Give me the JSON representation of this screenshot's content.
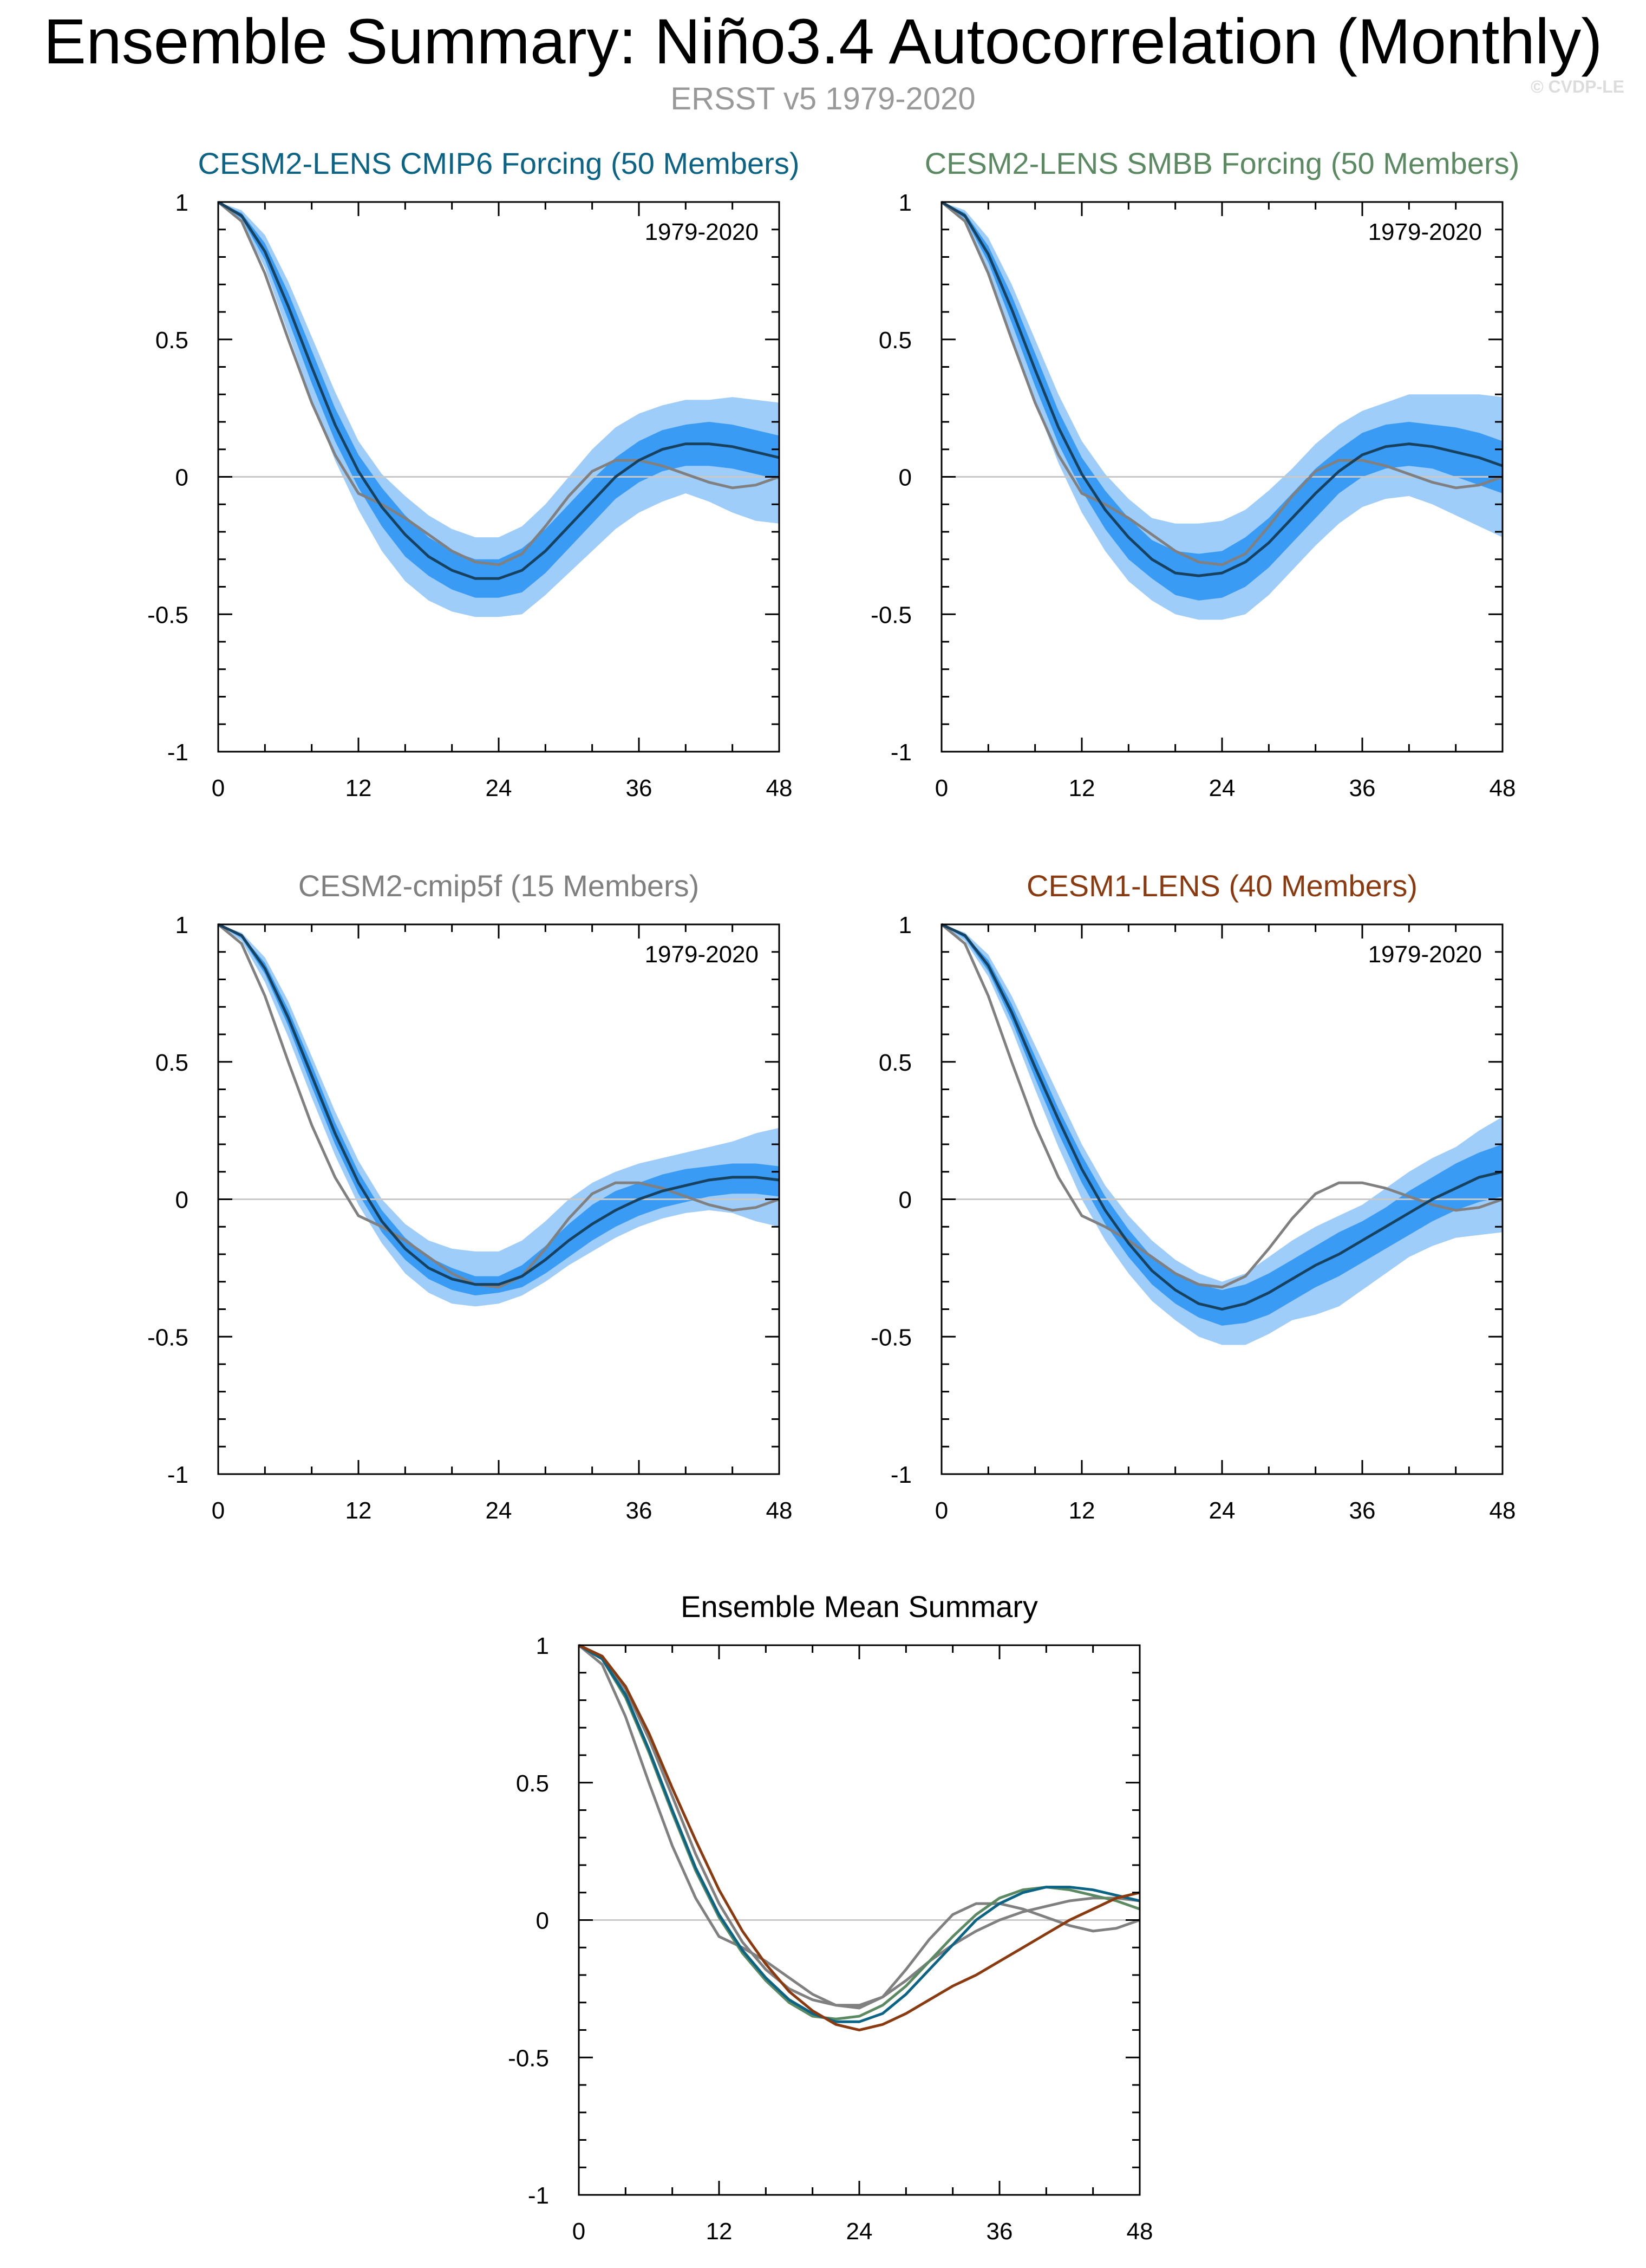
{
  "title": "Ensemble Summary: Niño3.4 Autocorrelation (Monthly)",
  "subtitle": "ERSST v5 1979-2020",
  "copyright": "© CVDP-LE",
  "colors": {
    "band_outer": "#9fcdf9",
    "band_inner": "#3a9bf5",
    "ensemble_mean": "#16415f",
    "observations": "#808080",
    "zero_line": "#c8c8c8"
  },
  "chart_data": [
    {
      "type": "line",
      "title": "CESM2-LENS CMIP6 Forcing (50 Members)",
      "title_color": "#0b6385",
      "period": "1979-2020",
      "x_ticks": [
        "0",
        "12",
        "24",
        "36",
        "48"
      ],
      "y_ticks": [
        "1",
        "0.5",
        "0",
        "-0.5",
        "-1"
      ],
      "xlim": [
        0,
        48
      ],
      "ylim": [
        -1,
        1
      ],
      "x": [
        0,
        2,
        4,
        6,
        8,
        10,
        12,
        14,
        16,
        18,
        20,
        22,
        24,
        26,
        28,
        30,
        32,
        34,
        36,
        38,
        40,
        42,
        44,
        46,
        48
      ],
      "ensemble_mean": [
        1.0,
        0.95,
        0.82,
        0.62,
        0.4,
        0.19,
        0.02,
        -0.11,
        -0.21,
        -0.29,
        -0.34,
        -0.37,
        -0.37,
        -0.34,
        -0.27,
        -0.18,
        -0.09,
        0.0,
        0.06,
        0.1,
        0.12,
        0.12,
        0.11,
        0.09,
        0.07
      ],
      "band_inner_upper": [
        1.0,
        0.96,
        0.85,
        0.67,
        0.46,
        0.25,
        0.08,
        -0.04,
        -0.14,
        -0.22,
        -0.27,
        -0.3,
        -0.3,
        -0.26,
        -0.19,
        -0.1,
        -0.01,
        0.07,
        0.13,
        0.17,
        0.19,
        0.2,
        0.19,
        0.17,
        0.15
      ],
      "band_inner_lower": [
        1.0,
        0.94,
        0.79,
        0.57,
        0.34,
        0.13,
        -0.04,
        -0.18,
        -0.29,
        -0.36,
        -0.41,
        -0.44,
        -0.44,
        -0.42,
        -0.35,
        -0.26,
        -0.17,
        -0.08,
        -0.02,
        0.02,
        0.04,
        0.04,
        0.03,
        0.01,
        -0.01
      ],
      "band_outer_upper": [
        1.0,
        0.97,
        0.88,
        0.71,
        0.51,
        0.31,
        0.13,
        0.01,
        -0.07,
        -0.14,
        -0.19,
        -0.22,
        -0.22,
        -0.18,
        -0.1,
        0.0,
        0.1,
        0.18,
        0.23,
        0.26,
        0.28,
        0.28,
        0.29,
        0.28,
        0.27
      ],
      "band_outer_lower": [
        1.0,
        0.93,
        0.76,
        0.52,
        0.28,
        0.06,
        -0.12,
        -0.27,
        -0.38,
        -0.45,
        -0.49,
        -0.51,
        -0.51,
        -0.5,
        -0.43,
        -0.35,
        -0.27,
        -0.19,
        -0.13,
        -0.09,
        -0.06,
        -0.09,
        -0.13,
        -0.16,
        -0.17
      ],
      "observed": [
        1.0,
        0.93,
        0.74,
        0.5,
        0.27,
        0.08,
        -0.06,
        -0.1,
        -0.15,
        -0.21,
        -0.27,
        -0.31,
        -0.32,
        -0.28,
        -0.18,
        -0.07,
        0.02,
        0.06,
        0.06,
        0.04,
        0.01,
        -0.02,
        -0.04,
        -0.03,
        0.0
      ]
    },
    {
      "type": "line",
      "title": "CESM2-LENS SMBB Forcing (50 Members)",
      "title_color": "#5b8a62",
      "period": "1979-2020",
      "x_ticks": [
        "0",
        "12",
        "24",
        "36",
        "48"
      ],
      "y_ticks": [
        "1",
        "0.5",
        "0",
        "-0.5",
        "-1"
      ],
      "xlim": [
        0,
        48
      ],
      "ylim": [
        -1,
        1
      ],
      "x": [
        0,
        2,
        4,
        6,
        8,
        10,
        12,
        14,
        16,
        18,
        20,
        22,
        24,
        26,
        28,
        30,
        32,
        34,
        36,
        38,
        40,
        42,
        44,
        46,
        48
      ],
      "ensemble_mean": [
        1.0,
        0.95,
        0.81,
        0.61,
        0.39,
        0.18,
        0.01,
        -0.12,
        -0.22,
        -0.3,
        -0.35,
        -0.36,
        -0.35,
        -0.31,
        -0.24,
        -0.15,
        -0.06,
        0.02,
        0.08,
        0.11,
        0.12,
        0.11,
        0.09,
        0.07,
        0.04
      ],
      "band_inner_upper": [
        1.0,
        0.96,
        0.84,
        0.66,
        0.45,
        0.24,
        0.07,
        -0.05,
        -0.15,
        -0.23,
        -0.27,
        -0.28,
        -0.27,
        -0.22,
        -0.15,
        -0.06,
        0.03,
        0.1,
        0.16,
        0.19,
        0.2,
        0.19,
        0.18,
        0.16,
        0.13
      ],
      "band_inner_lower": [
        1.0,
        0.94,
        0.78,
        0.56,
        0.33,
        0.12,
        -0.05,
        -0.19,
        -0.3,
        -0.37,
        -0.43,
        -0.45,
        -0.44,
        -0.4,
        -0.33,
        -0.24,
        -0.15,
        -0.06,
        0.0,
        0.03,
        0.04,
        0.03,
        0.0,
        -0.03,
        -0.06
      ],
      "band_outer_upper": [
        1.0,
        0.97,
        0.87,
        0.7,
        0.5,
        0.3,
        0.13,
        0.01,
        -0.08,
        -0.15,
        -0.17,
        -0.17,
        -0.16,
        -0.12,
        -0.05,
        0.03,
        0.12,
        0.19,
        0.24,
        0.27,
        0.3,
        0.3,
        0.3,
        0.3,
        0.29
      ],
      "band_outer_lower": [
        1.0,
        0.93,
        0.75,
        0.51,
        0.27,
        0.05,
        -0.13,
        -0.27,
        -0.38,
        -0.45,
        -0.5,
        -0.52,
        -0.52,
        -0.5,
        -0.43,
        -0.34,
        -0.25,
        -0.17,
        -0.11,
        -0.08,
        -0.07,
        -0.1,
        -0.14,
        -0.18,
        -0.22
      ],
      "observed": [
        1.0,
        0.93,
        0.74,
        0.5,
        0.27,
        0.08,
        -0.06,
        -0.1,
        -0.15,
        -0.21,
        -0.27,
        -0.31,
        -0.32,
        -0.28,
        -0.18,
        -0.07,
        0.02,
        0.06,
        0.06,
        0.04,
        0.01,
        -0.02,
        -0.04,
        -0.03,
        0.0
      ]
    },
    {
      "type": "line",
      "title": "CESM2-cmip5f (15 Members)",
      "title_color": "#808080",
      "period": "1979-2020",
      "x_ticks": [
        "0",
        "12",
        "24",
        "36",
        "48"
      ],
      "y_ticks": [
        "1",
        "0.5",
        "0",
        "-0.5",
        "-1"
      ],
      "xlim": [
        0,
        48
      ],
      "ylim": [
        -1,
        1
      ],
      "x": [
        0,
        2,
        4,
        6,
        8,
        10,
        12,
        14,
        16,
        18,
        20,
        22,
        24,
        26,
        28,
        30,
        32,
        34,
        36,
        38,
        40,
        42,
        44,
        46,
        48
      ],
      "ensemble_mean": [
        1.0,
        0.96,
        0.84,
        0.66,
        0.45,
        0.24,
        0.06,
        -0.08,
        -0.18,
        -0.25,
        -0.29,
        -0.31,
        -0.31,
        -0.28,
        -0.22,
        -0.15,
        -0.09,
        -0.04,
        0.0,
        0.03,
        0.05,
        0.07,
        0.08,
        0.08,
        0.07
      ],
      "band_inner_upper": [
        1.0,
        0.96,
        0.86,
        0.69,
        0.49,
        0.28,
        0.1,
        -0.04,
        -0.14,
        -0.21,
        -0.25,
        -0.28,
        -0.28,
        -0.24,
        -0.17,
        -0.09,
        -0.02,
        0.03,
        0.06,
        0.09,
        0.11,
        0.12,
        0.13,
        0.13,
        0.12
      ],
      "band_inner_lower": [
        1.0,
        0.95,
        0.82,
        0.63,
        0.41,
        0.2,
        0.02,
        -0.12,
        -0.22,
        -0.29,
        -0.33,
        -0.35,
        -0.34,
        -0.32,
        -0.27,
        -0.21,
        -0.15,
        -0.1,
        -0.06,
        -0.03,
        -0.01,
        0.01,
        0.02,
        0.02,
        0.01
      ],
      "band_outer_upper": [
        1.0,
        0.97,
        0.88,
        0.72,
        0.52,
        0.32,
        0.14,
        0.0,
        -0.09,
        -0.15,
        -0.18,
        -0.19,
        -0.19,
        -0.15,
        -0.08,
        0.0,
        0.06,
        0.1,
        0.13,
        0.15,
        0.17,
        0.19,
        0.21,
        0.24,
        0.26
      ],
      "band_outer_lower": [
        1.0,
        0.94,
        0.79,
        0.59,
        0.37,
        0.16,
        -0.02,
        -0.16,
        -0.27,
        -0.34,
        -0.38,
        -0.39,
        -0.38,
        -0.35,
        -0.3,
        -0.24,
        -0.19,
        -0.14,
        -0.1,
        -0.07,
        -0.05,
        -0.04,
        -0.05,
        -0.08,
        -0.1
      ],
      "observed": [
        1.0,
        0.93,
        0.74,
        0.5,
        0.27,
        0.08,
        -0.06,
        -0.1,
        -0.15,
        -0.21,
        -0.27,
        -0.31,
        -0.32,
        -0.28,
        -0.18,
        -0.07,
        0.02,
        0.06,
        0.06,
        0.04,
        0.01,
        -0.02,
        -0.04,
        -0.03,
        0.0
      ]
    },
    {
      "type": "line",
      "title": "CESM1-LENS (40 Members)",
      "title_color": "#8b3a0f",
      "period": "1979-2020",
      "x_ticks": [
        "0",
        "12",
        "24",
        "36",
        "48"
      ],
      "y_ticks": [
        "1",
        "0.5",
        "0",
        "-0.5",
        "-1"
      ],
      "xlim": [
        0,
        48
      ],
      "ylim": [
        -1,
        1
      ],
      "x": [
        0,
        2,
        4,
        6,
        8,
        10,
        12,
        14,
        16,
        18,
        20,
        22,
        24,
        26,
        28,
        30,
        32,
        34,
        36,
        38,
        40,
        42,
        44,
        46,
        48
      ],
      "ensemble_mean": [
        1.0,
        0.96,
        0.85,
        0.68,
        0.48,
        0.29,
        0.11,
        -0.04,
        -0.16,
        -0.26,
        -0.33,
        -0.38,
        -0.4,
        -0.38,
        -0.34,
        -0.29,
        -0.24,
        -0.2,
        -0.15,
        -0.1,
        -0.05,
        0.0,
        0.04,
        0.08,
        0.1
      ],
      "band_inner_upper": [
        1.0,
        0.96,
        0.87,
        0.71,
        0.52,
        0.33,
        0.16,
        0.01,
        -0.11,
        -0.21,
        -0.27,
        -0.31,
        -0.33,
        -0.31,
        -0.27,
        -0.22,
        -0.17,
        -0.12,
        -0.08,
        -0.03,
        0.03,
        0.08,
        0.13,
        0.17,
        0.2
      ],
      "band_inner_lower": [
        1.0,
        0.95,
        0.83,
        0.65,
        0.44,
        0.24,
        0.06,
        -0.09,
        -0.21,
        -0.31,
        -0.38,
        -0.43,
        -0.46,
        -0.45,
        -0.42,
        -0.37,
        -0.32,
        -0.28,
        -0.23,
        -0.18,
        -0.13,
        -0.08,
        -0.04,
        -0.01,
        0.01
      ],
      "band_outer_upper": [
        1.0,
        0.97,
        0.89,
        0.74,
        0.56,
        0.38,
        0.2,
        0.05,
        -0.06,
        -0.15,
        -0.22,
        -0.27,
        -0.3,
        -0.27,
        -0.21,
        -0.15,
        -0.1,
        -0.06,
        -0.02,
        0.04,
        0.1,
        0.15,
        0.19,
        0.25,
        0.3
      ],
      "band_outer_lower": [
        1.0,
        0.94,
        0.81,
        0.62,
        0.4,
        0.19,
        0.0,
        -0.15,
        -0.27,
        -0.37,
        -0.44,
        -0.5,
        -0.53,
        -0.53,
        -0.49,
        -0.44,
        -0.42,
        -0.39,
        -0.33,
        -0.27,
        -0.21,
        -0.17,
        -0.14,
        -0.13,
        -0.12
      ],
      "observed": [
        1.0,
        0.93,
        0.74,
        0.5,
        0.27,
        0.08,
        -0.06,
        -0.1,
        -0.15,
        -0.21,
        -0.27,
        -0.31,
        -0.32,
        -0.28,
        -0.18,
        -0.07,
        0.02,
        0.06,
        0.06,
        0.04,
        0.01,
        -0.02,
        -0.04,
        -0.03,
        0.0
      ]
    },
    {
      "type": "line",
      "title": "Ensemble Mean Summary",
      "title_color": "#000000",
      "period": "",
      "x_ticks": [
        "0",
        "12",
        "24",
        "36",
        "48"
      ],
      "y_ticks": [
        "1",
        "0.5",
        "0",
        "-0.5",
        "-1"
      ],
      "xlim": [
        0,
        48
      ],
      "ylim": [
        -1,
        1
      ],
      "x": [
        0,
        2,
        4,
        6,
        8,
        10,
        12,
        14,
        16,
        18,
        20,
        22,
        24,
        26,
        28,
        30,
        32,
        34,
        36,
        38,
        40,
        42,
        44,
        46,
        48
      ],
      "series": [
        {
          "name": "ERSST v5",
          "color": "#808080",
          "values": [
            1.0,
            0.93,
            0.74,
            0.5,
            0.27,
            0.08,
            -0.06,
            -0.1,
            -0.15,
            -0.21,
            -0.27,
            -0.31,
            -0.32,
            -0.28,
            -0.18,
            -0.07,
            0.02,
            0.06,
            0.06,
            0.04,
            0.01,
            -0.02,
            -0.04,
            -0.03,
            0.0
          ]
        },
        {
          "name": "CESM2-cmip5f",
          "color": "#808080",
          "values": [
            1.0,
            0.96,
            0.84,
            0.66,
            0.45,
            0.24,
            0.06,
            -0.08,
            -0.18,
            -0.25,
            -0.29,
            -0.31,
            -0.31,
            -0.28,
            -0.22,
            -0.15,
            -0.09,
            -0.04,
            0.0,
            0.03,
            0.05,
            0.07,
            0.08,
            0.08,
            0.07
          ]
        },
        {
          "name": "CESM2-LENS SMBB Forcing",
          "color": "#5b8a62",
          "values": [
            1.0,
            0.95,
            0.81,
            0.61,
            0.39,
            0.18,
            0.01,
            -0.12,
            -0.22,
            -0.3,
            -0.35,
            -0.36,
            -0.35,
            -0.31,
            -0.24,
            -0.15,
            -0.06,
            0.02,
            0.08,
            0.11,
            0.12,
            0.11,
            0.09,
            0.07,
            0.04
          ]
        },
        {
          "name": "CESM2-LENS CMIP6 Forcing",
          "color": "#0b6385",
          "values": [
            1.0,
            0.95,
            0.82,
            0.62,
            0.4,
            0.19,
            0.02,
            -0.11,
            -0.21,
            -0.29,
            -0.34,
            -0.37,
            -0.37,
            -0.34,
            -0.27,
            -0.18,
            -0.09,
            0.0,
            0.06,
            0.1,
            0.12,
            0.12,
            0.11,
            0.09,
            0.07
          ]
        },
        {
          "name": "CESM1-LENS",
          "color": "#8b3a0f",
          "values": [
            1.0,
            0.96,
            0.85,
            0.68,
            0.48,
            0.29,
            0.11,
            -0.04,
            -0.16,
            -0.26,
            -0.33,
            -0.38,
            -0.4,
            -0.38,
            -0.34,
            -0.29,
            -0.24,
            -0.2,
            -0.15,
            -0.1,
            -0.05,
            0.0,
            0.04,
            0.08,
            0.1
          ]
        }
      ]
    }
  ]
}
